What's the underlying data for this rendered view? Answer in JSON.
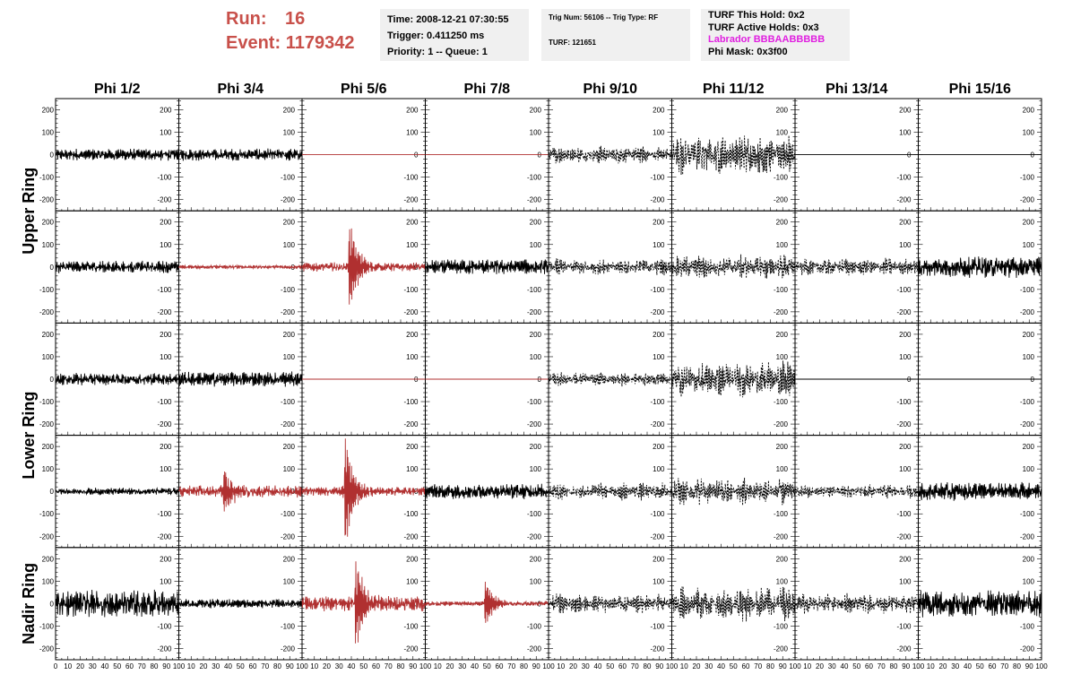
{
  "header": {
    "run_label": "Run:",
    "run_value": "16",
    "event_label": "Event:",
    "event_value": "1179342",
    "time_line": "Time: 2008-12-21 07:30:55",
    "trigger_line": "Trigger: 0.411250 ms",
    "priority_line": "Priority: 1 -- Queue: 1",
    "trig_line": "Trig Num: 56106 -- Trig Type: RF",
    "turf_line": "TURF: 121651",
    "turf_hold_line": "TURF This Hold: 0x2",
    "turf_active_line": "TURF Active Holds: 0x3",
    "labrador_line": "Labrador BBBAABBBBB",
    "phi_mask_line": "Phi Mask: 0x3f00"
  },
  "colors": {
    "accent_title": "#c8504a",
    "triggered_trace": "#b03030",
    "labrador": "#e020e0",
    "trace": "#000000"
  },
  "columns": [
    "Phi 1/2",
    "Phi 3/4",
    "Phi 5/6",
    "Phi 7/8",
    "Phi 9/10",
    "Phi 11/12",
    "Phi 13/14",
    "Phi 15/16"
  ],
  "row_groups": [
    "Upper Ring",
    "Lower Ring",
    "Nadir Ring"
  ],
  "y_ticks": [
    "200",
    "100",
    "0",
    "-100",
    "-200"
  ],
  "x_ticks": [
    "0",
    "10",
    "20",
    "30",
    "40",
    "50",
    "60",
    "70",
    "80",
    "90",
    "100"
  ],
  "chart_data": {
    "type": "line",
    "x_range": [
      0,
      100
    ],
    "y_range": [
      -250,
      250
    ],
    "rows": 5,
    "cols": 8,
    "panels": [
      {
        "row": 0,
        "col": 0,
        "style": "solid",
        "color": "black",
        "amp": 20
      },
      {
        "row": 0,
        "col": 1,
        "style": "solid",
        "color": "black",
        "amp": 20
      },
      {
        "row": 0,
        "col": 2,
        "style": "flat",
        "color": "red",
        "amp": 0
      },
      {
        "row": 0,
        "col": 3,
        "style": "flat",
        "color": "red",
        "amp": 0
      },
      {
        "row": 0,
        "col": 4,
        "style": "dashed",
        "color": "black",
        "amp": 25
      },
      {
        "row": 0,
        "col": 5,
        "style": "dashed",
        "color": "black",
        "amp": 60
      },
      {
        "row": 0,
        "col": 6,
        "style": "flat",
        "color": "black",
        "amp": 0
      },
      {
        "row": 0,
        "col": 7,
        "style": "flat",
        "color": "black",
        "amp": 0
      },
      {
        "row": 1,
        "col": 0,
        "style": "solid",
        "color": "black",
        "amp": 20
      },
      {
        "row": 1,
        "col": 1,
        "style": "solid",
        "color": "red",
        "amp": 6
      },
      {
        "row": 1,
        "col": 2,
        "style": "pulse",
        "color": "red",
        "amp": 15,
        "peak": 170,
        "center": 40
      },
      {
        "row": 1,
        "col": 3,
        "style": "solid",
        "color": "black",
        "amp": 25
      },
      {
        "row": 1,
        "col": 4,
        "style": "dashed",
        "color": "black",
        "amp": 25
      },
      {
        "row": 1,
        "col": 5,
        "style": "dashed",
        "color": "black",
        "amp": 35
      },
      {
        "row": 1,
        "col": 6,
        "style": "dashed",
        "color": "black",
        "amp": 25
      },
      {
        "row": 1,
        "col": 7,
        "style": "solid",
        "color": "black",
        "amp": 35
      },
      {
        "row": 2,
        "col": 0,
        "style": "solid",
        "color": "black",
        "amp": 20
      },
      {
        "row": 2,
        "col": 1,
        "style": "solid",
        "color": "black",
        "amp": 25
      },
      {
        "row": 2,
        "col": 2,
        "style": "flat",
        "color": "red",
        "amp": 0
      },
      {
        "row": 2,
        "col": 3,
        "style": "flat",
        "color": "red",
        "amp": 0
      },
      {
        "row": 2,
        "col": 4,
        "style": "dashed",
        "color": "black",
        "amp": 20
      },
      {
        "row": 2,
        "col": 5,
        "style": "dashed",
        "color": "black",
        "amp": 55
      },
      {
        "row": 2,
        "col": 6,
        "style": "flat",
        "color": "black",
        "amp": 0
      },
      {
        "row": 2,
        "col": 7,
        "style": "flat",
        "color": "black",
        "amp": 0
      },
      {
        "row": 3,
        "col": 0,
        "style": "solid",
        "color": "black",
        "amp": 12
      },
      {
        "row": 3,
        "col": 1,
        "style": "pulse",
        "color": "red",
        "amp": 20,
        "peak": 90,
        "center": 38
      },
      {
        "row": 3,
        "col": 2,
        "style": "pulse",
        "color": "red",
        "amp": 15,
        "peak": 230,
        "center": 36
      },
      {
        "row": 3,
        "col": 3,
        "style": "solid",
        "color": "black",
        "amp": 25
      },
      {
        "row": 3,
        "col": 4,
        "style": "dashed",
        "color": "black",
        "amp": 25
      },
      {
        "row": 3,
        "col": 5,
        "style": "dashed",
        "color": "black",
        "amp": 40
      },
      {
        "row": 3,
        "col": 6,
        "style": "dashed",
        "color": "black",
        "amp": 20
      },
      {
        "row": 3,
        "col": 7,
        "style": "solid",
        "color": "black",
        "amp": 30
      },
      {
        "row": 4,
        "col": 0,
        "style": "solid",
        "color": "black",
        "amp": 45
      },
      {
        "row": 4,
        "col": 1,
        "style": "solid",
        "color": "black",
        "amp": 15
      },
      {
        "row": 4,
        "col": 2,
        "style": "pulse",
        "color": "red",
        "amp": 25,
        "peak": 170,
        "center": 45
      },
      {
        "row": 4,
        "col": 3,
        "style": "pulse",
        "color": "red",
        "amp": 8,
        "peak": 90,
        "center": 50
      },
      {
        "row": 4,
        "col": 4,
        "style": "dashed",
        "color": "black",
        "amp": 30
      },
      {
        "row": 4,
        "col": 5,
        "style": "dashed",
        "color": "black",
        "amp": 50
      },
      {
        "row": 4,
        "col": 6,
        "style": "dashed",
        "color": "black",
        "amp": 30
      },
      {
        "row": 4,
        "col": 7,
        "style": "solid",
        "color": "black",
        "amp": 45
      }
    ]
  }
}
